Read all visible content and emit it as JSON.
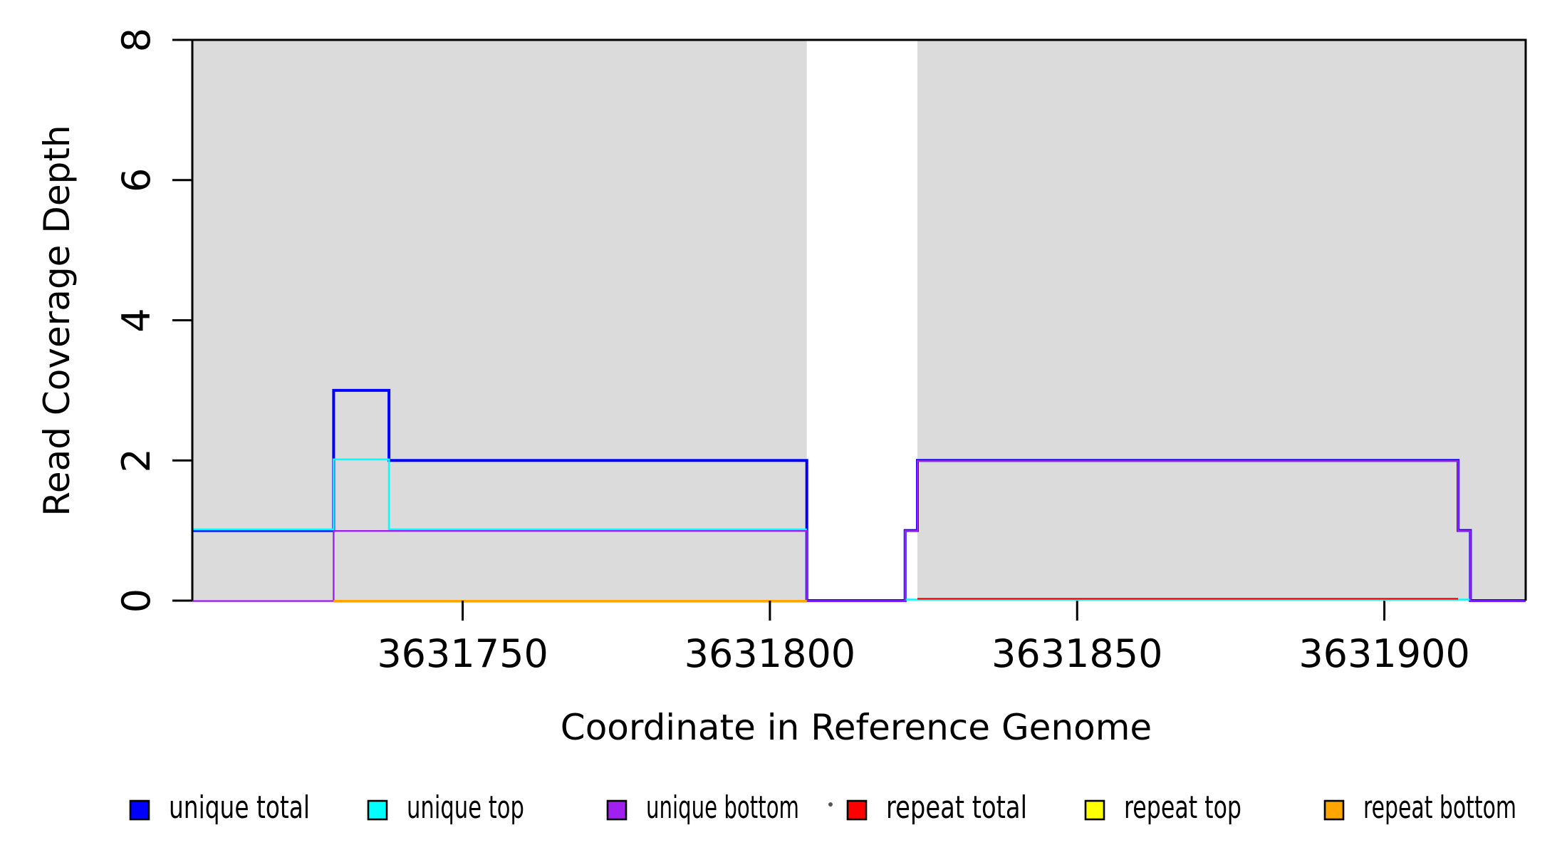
{
  "chart_data": {
    "type": "line",
    "subtype": "step-coverage-plot",
    "title": "",
    "xlabel": "Coordinate in Reference Genome",
    "ylabel": "Read Coverage Depth",
    "xlim": [
      3631706,
      3631923
    ],
    "ylim": [
      0,
      8
    ],
    "x_ticks": [
      3631750,
      3631800,
      3631850,
      3631900
    ],
    "y_ticks": [
      0,
      2,
      4,
      6,
      8
    ],
    "grid": false,
    "legend_position": "bottom",
    "background_color": "#FFFFFF",
    "frame_sides": [
      "left",
      "top",
      "right"
    ],
    "shaded_regions": [
      {
        "x0": 3631706,
        "x1": 3631806,
        "color": "#DBDBDB"
      },
      {
        "x0": 3631824,
        "x1": 3631923,
        "color": "#DBDBDB"
      }
    ],
    "series": [
      {
        "name": "unique total",
        "color": "#0000FF",
        "segments": [
          [
            [
              3631706,
              1
            ],
            [
              3631729,
              3
            ],
            [
              3631738,
              2
            ],
            [
              3631806,
              0
            ],
            [
              3631822,
              1
            ],
            [
              3631824,
              2
            ],
            [
              3631912,
              1
            ],
            [
              3631914,
              0
            ],
            [
              3631923,
              0
            ]
          ]
        ]
      },
      {
        "name": "unique top",
        "color": "#00FFFF",
        "segments": [
          [
            [
              3631706,
              1
            ],
            [
              3631729,
              2
            ],
            [
              3631738,
              1
            ],
            [
              3631806,
              1
            ]
          ],
          [
            [
              3631822,
              0
            ],
            [
              3631914,
              0
            ]
          ]
        ]
      },
      {
        "name": "unique bottom",
        "color": "#A020F0",
        "segments": [
          [
            [
              3631706,
              0
            ],
            [
              3631729,
              1
            ],
            [
              3631806,
              0
            ],
            [
              3631822,
              1
            ],
            [
              3631824,
              2
            ],
            [
              3631912,
              1
            ],
            [
              3631914,
              0
            ],
            [
              3631923,
              0
            ]
          ]
        ]
      },
      {
        "name": "repeat total",
        "color": "#FF0000",
        "segments": [
          [
            [
              3631824,
              0
            ],
            [
              3631912,
              0
            ]
          ]
        ]
      },
      {
        "name": "repeat top",
        "color": "#FFFF00",
        "segments": []
      },
      {
        "name": "repeat bottom",
        "color": "#FFA500",
        "segments": [
          [
            [
              3631729,
              0
            ],
            [
              3631806,
              0
            ]
          ]
        ]
      }
    ]
  },
  "legend": {
    "items": [
      {
        "label": "unique total",
        "color": "#0000FF"
      },
      {
        "label": "unique top",
        "color": "#00FFFF"
      },
      {
        "label": "unique bottom",
        "color": "#A020F0"
      },
      {
        "label": "repeat total",
        "color": "#FF0000"
      },
      {
        "label": "repeat top",
        "color": "#FFFF00"
      },
      {
        "label": "repeat bottom",
        "color": "#FFA500"
      }
    ]
  }
}
